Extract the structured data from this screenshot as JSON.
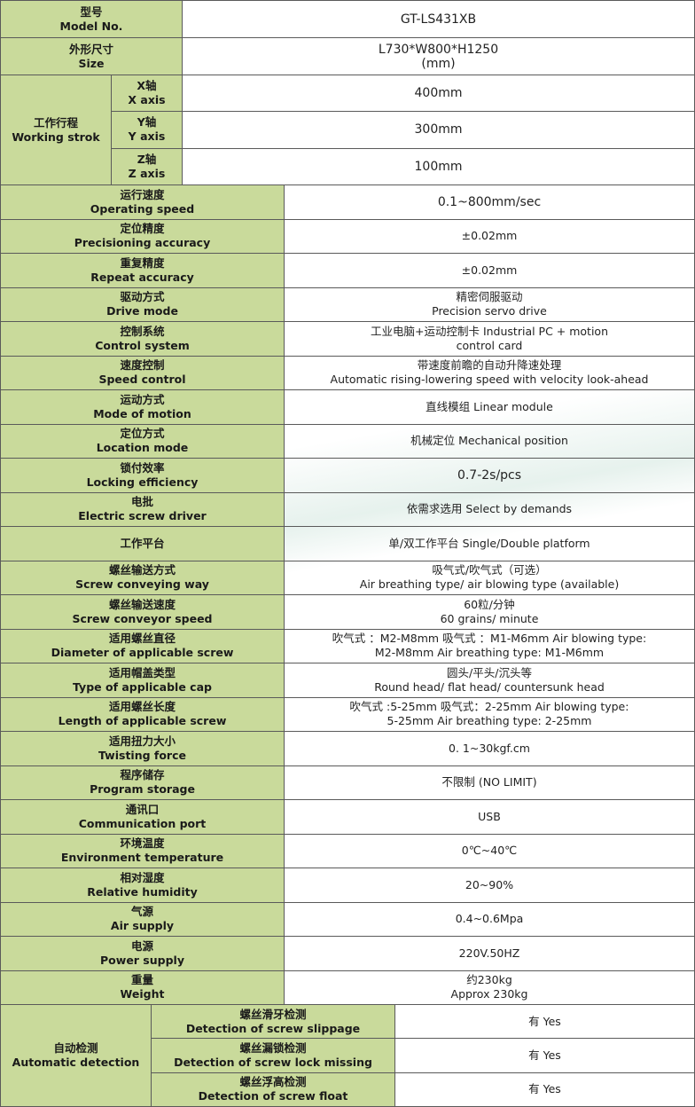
{
  "colors": {
    "label_bg": "#c9da9b",
    "border": "#5a5a5a"
  },
  "top": [
    {
      "cn": "型号",
      "en": "Model No.",
      "value": [
        "GT-LS431XB"
      ]
    },
    {
      "cn": "外形尺寸",
      "en": "Size",
      "value": [
        "L730*W800*H1250",
        "(mm)"
      ]
    }
  ],
  "stroke": {
    "cn": "工作行程",
    "en": "Working strok",
    "axes": [
      {
        "cn": "X轴",
        "en": "X axis",
        "value": [
          "400mm"
        ]
      },
      {
        "cn": "Y轴",
        "en": "Y axis",
        "value": [
          "300mm"
        ]
      },
      {
        "cn": "Z轴",
        "en": "Z axis",
        "value": [
          "100mm"
        ]
      }
    ]
  },
  "rows": [
    {
      "cn": "运行速度",
      "en": "Operating speed",
      "value": [
        "0.1~800mm/sec"
      ]
    },
    {
      "cn": "定位精度",
      "en": "Precisioning accuracy",
      "value": [
        "±0.02mm"
      ]
    },
    {
      "cn": "重复精度",
      "en": "Repeat accuracy",
      "value": [
        "±0.02mm"
      ]
    },
    {
      "cn": "驱动方式",
      "en": "Drive mode",
      "value": [
        "精密伺服驱动",
        "Precision servo drive"
      ]
    },
    {
      "cn": "控制系统",
      "en": "Control system",
      "value": [
        "工业电脑+运动控制卡  Industrial PC + motion",
        "control card"
      ]
    },
    {
      "cn": "速度控制",
      "en": "Speed control",
      "value": [
        "带速度前瞻的自动升降速处理",
        "Automatic rising-lowering speed with velocity look-ahead"
      ]
    },
    {
      "cn": "运动方式",
      "en": "Mode of motion",
      "value": [
        "直线模组 Linear module"
      ]
    },
    {
      "cn": "定位方式",
      "en": "Location mode",
      "value": [
        "机械定位 Mechanical position"
      ]
    },
    {
      "cn": "锁付效率",
      "en": "Locking efficiency",
      "value": [
        "0.7-2s/pcs"
      ]
    },
    {
      "cn": "电批",
      "en": "Electric screw driver",
      "value": [
        "依需求选用 Select by demands"
      ]
    },
    {
      "cn": "工作平台",
      "en": "",
      "value": [
        "单/双工作平台 Single/Double platform"
      ]
    },
    {
      "cn": "螺丝输送方式",
      "en": "Screw conveying way",
      "value": [
        "吸气式/吹气式（可选）",
        "Air breathing type/ air blowing type (available)"
      ]
    },
    {
      "cn": "螺丝输送速度",
      "en": "Screw conveyor speed",
      "value": [
        "60粒/分钟",
        "60 grains/ minute"
      ]
    },
    {
      "cn": "适用螺丝直径",
      "en": "Diameter of applicable screw",
      "value": [
        "吹气式 ：M2-M8mm 吸气式 ：M1-M6mm Air blowing type:",
        "M2-M8mm  Air breathing type: M1-M6mm"
      ]
    },
    {
      "cn": "适用帽盖类型",
      "en": "Type of applicable cap",
      "value": [
        "圆头/平头/沉头等",
        "Round head/ flat head/ countersunk head"
      ]
    },
    {
      "cn": "适用螺丝长度",
      "en": "Length of applicable screw",
      "value": [
        "吹气式 :5-25mm  吸气式：2-25mm Air blowing type:",
        "5-25mm  Air breathing type: 2-25mm"
      ]
    },
    {
      "cn": "适用扭力大小",
      "en": "Twisting force",
      "value": [
        "0. 1~30kgf.cm"
      ]
    },
    {
      "cn": "程序储存",
      "en": "Program storage",
      "value": [
        "不限制 (NO LIMIT)"
      ]
    },
    {
      "cn": "通讯口",
      "en": "Communication port",
      "value": [
        "USB"
      ]
    },
    {
      "cn": "环境温度",
      "en": "Environment temperature",
      "value": [
        "0℃~40℃"
      ]
    },
    {
      "cn": "相对湿度",
      "en": "Relative humidity",
      "value": [
        "20~90%"
      ]
    },
    {
      "cn": "气源",
      "en": "Air supply",
      "value": [
        "0.4~0.6Mpa"
      ]
    },
    {
      "cn": "电源",
      "en": "Power supply",
      "value": [
        "220V.50HZ"
      ]
    },
    {
      "cn": "重量",
      "en": "Weight",
      "value": [
        "约230kg",
        "Approx 230kg"
      ]
    }
  ],
  "detection": {
    "cn": "自动检测",
    "en": "Automatic detection",
    "items": [
      {
        "cn": "螺丝滑牙检测",
        "en": "Detection of screw slippage",
        "value": [
          "有 Yes"
        ]
      },
      {
        "cn": "螺丝漏锁检测",
        "en": "Detection of screw lock missing",
        "value": [
          "有 Yes"
        ]
      },
      {
        "cn": "螺丝浮高检测",
        "en": "Detection of screw float",
        "value": [
          "有 Yes"
        ]
      }
    ]
  }
}
